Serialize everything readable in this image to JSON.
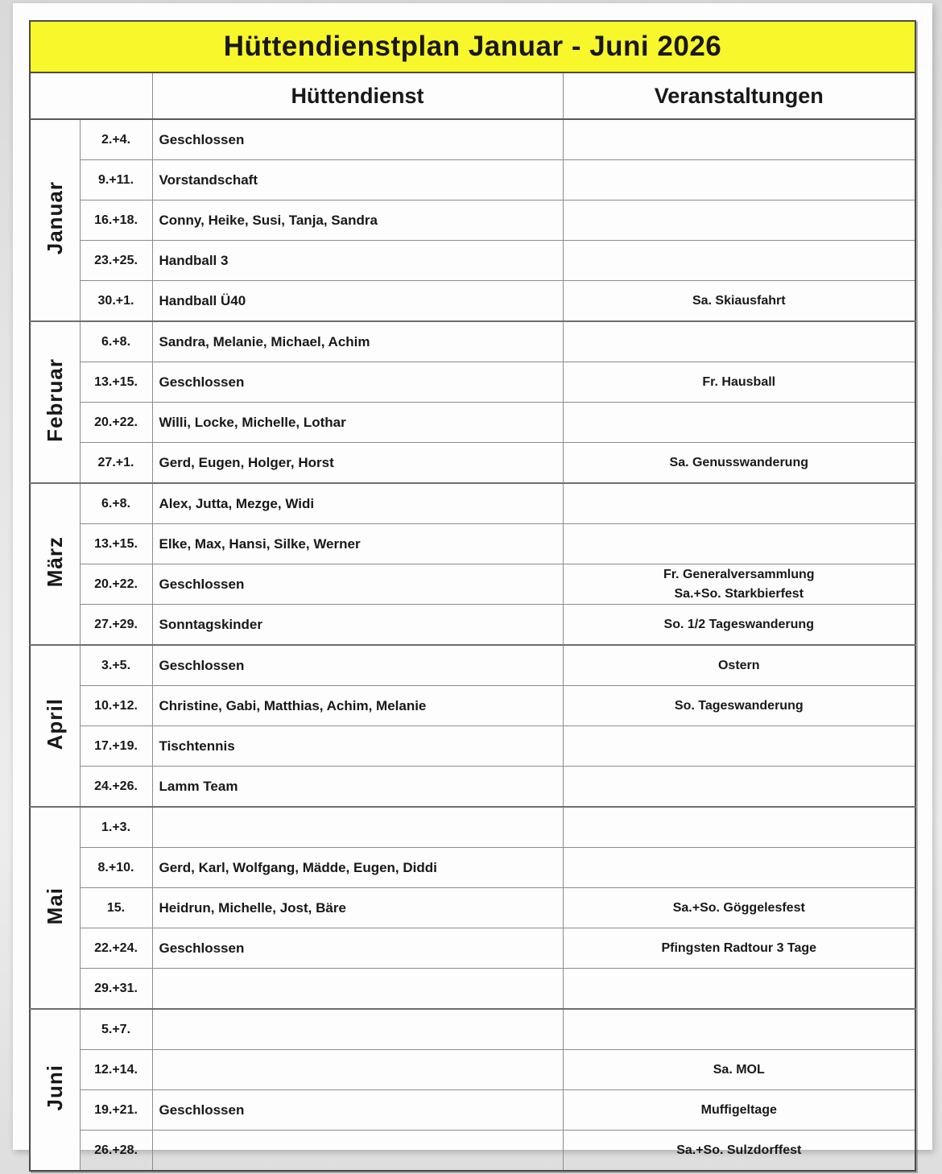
{
  "title": "Hüttendienstplan Januar - Juni 2026",
  "columns": {
    "huettendienst": "Hüttendienst",
    "veranstaltungen": "Veranstaltungen"
  },
  "colors": {
    "title_background": "#f7f72b",
    "text": "#181818",
    "grid_line": "#8c8c8c",
    "frame": "#4a4a4a"
  },
  "months": [
    {
      "name": "Januar",
      "rows": [
        {
          "date": "2.+4.",
          "dienst": "Geschlossen",
          "event": ""
        },
        {
          "date": "9.+11.",
          "dienst": "Vorstandschaft",
          "event": ""
        },
        {
          "date": "16.+18.",
          "dienst": "Conny, Heike, Susi, Tanja, Sandra",
          "event": ""
        },
        {
          "date": "23.+25.",
          "dienst": "Handball 3",
          "event": ""
        },
        {
          "date": "30.+1.",
          "dienst": "Handball Ü40",
          "event": "Sa. Skiausfahrt"
        }
      ]
    },
    {
      "name": "Februar",
      "rows": [
        {
          "date": "6.+8.",
          "dienst": "Sandra, Melanie, Michael, Achim",
          "event": ""
        },
        {
          "date": "13.+15.",
          "dienst": "Geschlossen",
          "event": "Fr. Hausball"
        },
        {
          "date": "20.+22.",
          "dienst": "Willi, Locke, Michelle, Lothar",
          "event": ""
        },
        {
          "date": "27.+1.",
          "dienst": "Gerd, Eugen, Holger, Horst",
          "event": "Sa. Genusswanderung"
        }
      ]
    },
    {
      "name": "März",
      "rows": [
        {
          "date": "6.+8.",
          "dienst": "Alex, Jutta, Mezge, Widi",
          "event": ""
        },
        {
          "date": "13.+15.",
          "dienst": "Elke, Max, Hansi, Silke, Werner",
          "event": ""
        },
        {
          "date": "20.+22.",
          "dienst": "Geschlossen",
          "event": "Fr. Generalversammlung\nSa.+So. Starkbierfest"
        },
        {
          "date": "27.+29.",
          "dienst": "Sonntagskinder",
          "event": "So. 1/2 Tageswanderung"
        }
      ]
    },
    {
      "name": "April",
      "rows": [
        {
          "date": "3.+5.",
          "dienst": "Geschlossen",
          "event": "Ostern"
        },
        {
          "date": "10.+12.",
          "dienst": "Christine, Gabi, Matthias, Achim, Melanie",
          "event": "So. Tageswanderung"
        },
        {
          "date": "17.+19.",
          "dienst": "Tischtennis",
          "event": ""
        },
        {
          "date": "24.+26.",
          "dienst": "Lamm Team",
          "event": ""
        }
      ]
    },
    {
      "name": "Mai",
      "rows": [
        {
          "date": "1.+3.",
          "dienst": "",
          "event": ""
        },
        {
          "date": "8.+10.",
          "dienst": "Gerd, Karl, Wolfgang, Mädde, Eugen, Diddi",
          "event": ""
        },
        {
          "date": "15.",
          "dienst": "Heidrun, Michelle, Jost, Bäre",
          "event": "Sa.+So. Göggelesfest"
        },
        {
          "date": "22.+24.",
          "dienst": "Geschlossen",
          "event": "Pfingsten Radtour 3 Tage"
        },
        {
          "date": "29.+31.",
          "dienst": "",
          "event": ""
        }
      ]
    },
    {
      "name": "Juni",
      "rows": [
        {
          "date": "5.+7.",
          "dienst": "",
          "event": ""
        },
        {
          "date": "12.+14.",
          "dienst": "",
          "event": "Sa. MOL"
        },
        {
          "date": "19.+21.",
          "dienst": "Geschlossen",
          "event": "Muffigeltage"
        },
        {
          "date": "26.+28.",
          "dienst": "",
          "event": "Sa.+So. Sulzdorffest"
        }
      ]
    }
  ]
}
